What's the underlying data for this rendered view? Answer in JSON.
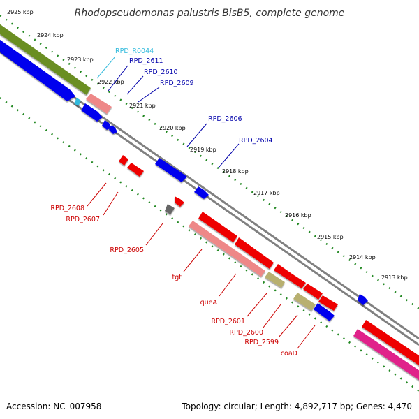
{
  "title": "Rhodopseudomonas palustris BisB5, complete genome",
  "footer": {
    "accession": "Accession: NC_007958",
    "summary": "Topology: circular; Length: 4,892,717 bp; Genes: 4,470"
  },
  "scale_labels": [
    "2925 kbp",
    "2924 kbp",
    "2923 kbp",
    "2922 kbp",
    "2921 kbp",
    "2920 kbp",
    "2919 kbp",
    "2918 kbp",
    "2917 kbp",
    "2916 kbp",
    "2915 kbp",
    "2914 kbp",
    "2913 kbp"
  ],
  "genes_top": [
    {
      "name": "RPD_R0044",
      "color": "#33bbdd"
    },
    {
      "name": "RPD_2611",
      "color": "#0000aa"
    },
    {
      "name": "RPD_2610",
      "color": "#0000aa"
    },
    {
      "name": "RPD_2609",
      "color": "#0000aa"
    },
    {
      "name": "RPD_2606",
      "color": "#0000aa"
    },
    {
      "name": "RPD_2604",
      "color": "#0000aa"
    }
  ],
  "genes_bottom": [
    {
      "name": "RPD_2608",
      "color": "#cc0000"
    },
    {
      "name": "RPD_2607",
      "color": "#cc0000"
    },
    {
      "name": "RPD_2605",
      "color": "#cc0000"
    },
    {
      "name": "tgt",
      "color": "#cc0000"
    },
    {
      "name": "queA",
      "color": "#cc0000"
    },
    {
      "name": "RPD_2601",
      "color": "#cc0000"
    },
    {
      "name": "RPD_2600",
      "color": "#cc0000"
    },
    {
      "name": "RPD_2599",
      "color": "#cc0000"
    },
    {
      "name": "coaD",
      "color": "#cc0000"
    }
  ],
  "colors": {
    "forward_cds": "#0000ee",
    "reverse_cds": "#ee0000",
    "rrna_trna": "#33bbdd",
    "pseudo_light": "#ee8888",
    "olive": "#6b8e23",
    "khaki": "#b8b070",
    "magenta": "#e0208a",
    "grey": "#666666",
    "backbone": "#808080",
    "scale": "#228822"
  }
}
